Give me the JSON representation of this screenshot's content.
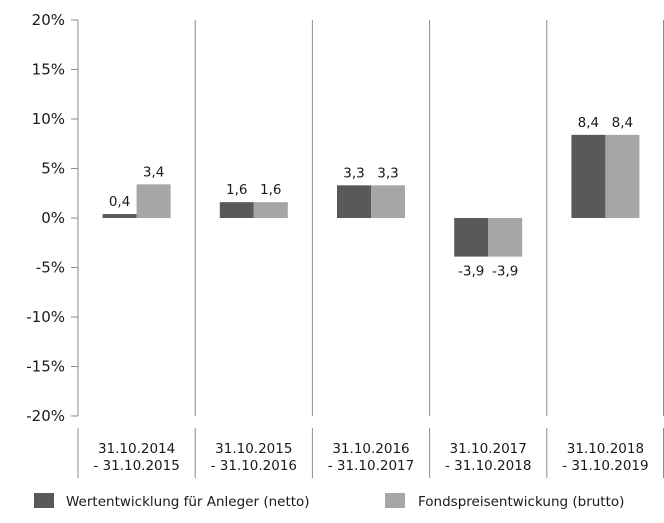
{
  "chart_data": {
    "type": "bar",
    "categories": [
      [
        "31.10.2014",
        "- 31.10.2015"
      ],
      [
        "31.10.2015",
        "- 31.10.2016"
      ],
      [
        "31.10.2016",
        "- 31.10.2017"
      ],
      [
        "31.10.2017",
        "- 31.10.2018"
      ],
      [
        "31.10.2018",
        "- 31.10.2019"
      ]
    ],
    "series": [
      {
        "name": "Wertentwicklung für Anleger (netto)",
        "values": [
          0.4,
          1.6,
          3.3,
          -3.9,
          8.4
        ],
        "labels": [
          "0,4",
          "1,6",
          "3,3",
          "-3,9",
          "8,4"
        ],
        "color": "#595959"
      },
      {
        "name": "Fondspreisentwickung (brutto)",
        "values": [
          3.4,
          1.6,
          3.3,
          -3.9,
          8.4
        ],
        "labels": [
          "3,4",
          "1,6",
          "3,3",
          "-3,9",
          "8,4"
        ],
        "color": "#a6a6a6"
      }
    ],
    "ylim": [
      -20,
      20
    ],
    "yticks": [
      20,
      15,
      10,
      5,
      0,
      -5,
      -10,
      -15,
      -20
    ],
    "ytick_labels": [
      "20%",
      "15%",
      "10%",
      "5%",
      "0%",
      "-5%",
      "-10%",
      "-15%",
      "-20%"
    ],
    "grid": "vertical",
    "legend_position": "bottom",
    "title": "",
    "xlabel": "",
    "ylabel": ""
  }
}
